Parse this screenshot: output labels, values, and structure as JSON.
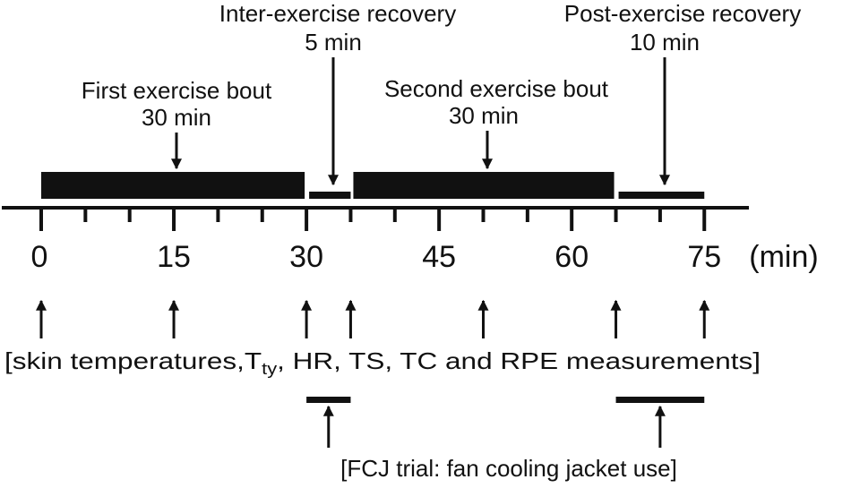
{
  "phases": [
    {
      "name_line1": "First exercise bout",
      "name_line2": "30 min",
      "start": 0,
      "end": 30,
      "bar": "thick"
    },
    {
      "name_line1": "Inter-exercise recovery",
      "name_line2": "5 min",
      "start": 30,
      "end": 35,
      "bar": "thin"
    },
    {
      "name_line1": "Second exercise bout",
      "name_line2": "30 min",
      "start": 35,
      "end": 65,
      "bar": "thick"
    },
    {
      "name_line1": "Post-exercise recovery",
      "name_line2": "10 min",
      "start": 65,
      "end": 75,
      "bar": "thin"
    }
  ],
  "axis": {
    "min": 0,
    "max": 75,
    "minor_tick_step": 5,
    "labels": [
      "0",
      "15",
      "30",
      "45",
      "60",
      "75"
    ],
    "label_values": [
      0,
      15,
      30,
      45,
      60,
      75
    ],
    "unit": "(min)"
  },
  "measurements": {
    "times": [
      0,
      15,
      30,
      35,
      50,
      65,
      75
    ],
    "text_before": "[skin temperatures,T",
    "text_sub": "ty",
    "text_after": ", HR, TS, TC and RPE measurements]"
  },
  "fcj": {
    "periods": [
      [
        30,
        35
      ],
      [
        65,
        75
      ]
    ],
    "text": "[FCJ trial: fan cooling jacket use]"
  }
}
